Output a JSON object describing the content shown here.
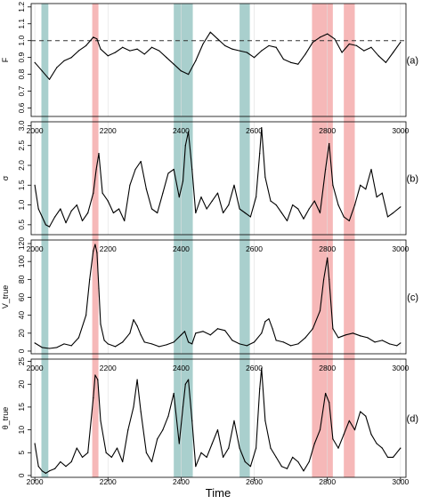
{
  "figure": {
    "xlabel": "Time",
    "x_range": [
      1990,
      3015
    ],
    "x_ticks": [
      2000,
      2200,
      2400,
      2600,
      2800,
      3000
    ],
    "shade_colors": {
      "teal": "#a9cfcd",
      "pink": "#f6b8b8"
    },
    "shaded_periods": [
      {
        "color": "teal",
        "start": 2018,
        "end": 2037
      },
      {
        "color": "pink",
        "start": 2157,
        "end": 2174
      },
      {
        "color": "teal",
        "start": 2380,
        "end": 2432
      },
      {
        "color": "teal",
        "start": 2560,
        "end": 2588
      },
      {
        "color": "pink",
        "start": 2758,
        "end": 2815
      },
      {
        "color": "pink",
        "start": 2845,
        "end": 2875
      }
    ]
  },
  "chart_data": [
    {
      "type": "line",
      "panel_label": "(a)",
      "ylabel": "F",
      "ylim": [
        0.55,
        1.22
      ],
      "y_ticks": [
        "0.6",
        "0.7",
        "0.8",
        "0.9",
        "1.0",
        "1.1",
        "1.2"
      ],
      "reference_line": 1.0,
      "x": [
        2000,
        2020,
        2040,
        2060,
        2080,
        2100,
        2120,
        2140,
        2160,
        2170,
        2180,
        2200,
        2220,
        2240,
        2260,
        2280,
        2300,
        2320,
        2340,
        2360,
        2380,
        2400,
        2420,
        2440,
        2460,
        2480,
        2500,
        2520,
        2540,
        2560,
        2580,
        2600,
        2620,
        2640,
        2660,
        2680,
        2700,
        2720,
        2740,
        2760,
        2780,
        2800,
        2820,
        2840,
        2860,
        2880,
        2900,
        2920,
        2940,
        2960,
        2980,
        3000
      ],
      "y": [
        0.87,
        0.82,
        0.77,
        0.84,
        0.88,
        0.9,
        0.94,
        0.97,
        1.02,
        1.01,
        0.95,
        0.91,
        0.93,
        0.96,
        0.94,
        0.95,
        0.92,
        0.96,
        0.94,
        0.9,
        0.86,
        0.82,
        0.8,
        0.88,
        0.98,
        1.05,
        1.01,
        0.97,
        0.95,
        0.94,
        0.93,
        0.9,
        0.94,
        0.97,
        0.96,
        0.89,
        0.87,
        0.86,
        0.92,
        0.99,
        1.02,
        1.04,
        1.01,
        0.93,
        0.98,
        0.97,
        0.94,
        0.96,
        0.91,
        0.87,
        0.93,
        0.99
      ]
    },
    {
      "type": "line",
      "panel_label": "(b)",
      "ylabel": "σ",
      "ylim": [
        0.25,
        3.1
      ],
      "y_ticks": [
        "0.5",
        "1.0",
        "1.5",
        "2.0",
        "2.5",
        "3.0"
      ],
      "x": [
        2000,
        2010,
        2020,
        2030,
        2040,
        2055,
        2070,
        2085,
        2100,
        2115,
        2130,
        2145,
        2160,
        2168,
        2175,
        2185,
        2200,
        2215,
        2230,
        2245,
        2260,
        2275,
        2290,
        2305,
        2320,
        2335,
        2350,
        2365,
        2380,
        2395,
        2405,
        2412,
        2420,
        2430,
        2440,
        2455,
        2470,
        2485,
        2500,
        2515,
        2530,
        2545,
        2560,
        2575,
        2590,
        2605,
        2615,
        2620,
        2630,
        2645,
        2660,
        2675,
        2690,
        2705,
        2720,
        2735,
        2750,
        2765,
        2780,
        2795,
        2805,
        2815,
        2830,
        2845,
        2860,
        2875,
        2890,
        2905,
        2920,
        2935,
        2950,
        2965,
        2980,
        3000
      ],
      "y": [
        1.5,
        0.9,
        0.7,
        0.5,
        0.45,
        0.7,
        0.9,
        0.55,
        0.85,
        1.0,
        0.6,
        0.8,
        1.3,
        1.9,
        2.3,
        1.3,
        1.1,
        0.8,
        0.9,
        0.6,
        1.5,
        1.9,
        2.1,
        1.4,
        0.9,
        0.8,
        1.3,
        1.8,
        1.9,
        1.2,
        1.6,
        2.5,
        2.85,
        1.9,
        0.8,
        1.2,
        0.9,
        1.1,
        1.3,
        0.8,
        1.0,
        1.5,
        0.9,
        0.8,
        0.7,
        1.2,
        2.3,
        2.95,
        1.7,
        1.1,
        1.0,
        0.8,
        0.6,
        1.0,
        0.9,
        0.65,
        0.9,
        1.1,
        0.8,
        1.9,
        2.55,
        1.5,
        1.0,
        0.7,
        0.6,
        1.0,
        1.5,
        1.4,
        1.9,
        1.2,
        1.3,
        0.7,
        0.8,
        0.95
      ]
    },
    {
      "type": "line",
      "panel_label": "(c)",
      "ylabel": "V_true",
      "ylim": [
        -3,
        124
      ],
      "y_ticks": [
        "0",
        "20",
        "40",
        "60",
        "80",
        "100",
        "120"
      ],
      "x": [
        2000,
        2020,
        2040,
        2060,
        2080,
        2100,
        2120,
        2140,
        2150,
        2160,
        2165,
        2170,
        2175,
        2180,
        2190,
        2200,
        2220,
        2240,
        2260,
        2270,
        2280,
        2290,
        2300,
        2320,
        2340,
        2360,
        2380,
        2400,
        2410,
        2420,
        2430,
        2440,
        2460,
        2480,
        2500,
        2520,
        2540,
        2560,
        2580,
        2600,
        2620,
        2630,
        2640,
        2650,
        2660,
        2680,
        2700,
        2720,
        2740,
        2760,
        2780,
        2790,
        2800,
        2805,
        2815,
        2830,
        2850,
        2870,
        2890,
        2910,
        2930,
        2950,
        2970,
        2990,
        3000
      ],
      "y": [
        9,
        4,
        3,
        4,
        8,
        6,
        15,
        40,
        80,
        112,
        119,
        110,
        70,
        30,
        12,
        8,
        5,
        10,
        20,
        35,
        28,
        18,
        10,
        8,
        5,
        7,
        10,
        18,
        22,
        10,
        8,
        20,
        22,
        18,
        25,
        23,
        12,
        8,
        6,
        10,
        20,
        33,
        36,
        25,
        12,
        10,
        6,
        8,
        15,
        25,
        45,
        80,
        104,
        80,
        25,
        15,
        18,
        20,
        17,
        15,
        10,
        12,
        8,
        6,
        9
      ]
    },
    {
      "type": "line",
      "panel_label": "(d)",
      "ylabel": "θ_true",
      "ylim": [
        -0.4,
        25.5
      ],
      "y_ticks": [
        "0",
        "5",
        "10",
        "15",
        "20",
        "25"
      ],
      "x": [
        2000,
        2010,
        2020,
        2030,
        2040,
        2055,
        2070,
        2085,
        2100,
        2115,
        2130,
        2145,
        2160,
        2165,
        2172,
        2180,
        2195,
        2210,
        2225,
        2240,
        2255,
        2270,
        2280,
        2290,
        2305,
        2320,
        2335,
        2350,
        2365,
        2380,
        2395,
        2405,
        2412,
        2420,
        2430,
        2440,
        2455,
        2470,
        2485,
        2500,
        2515,
        2530,
        2545,
        2560,
        2575,
        2590,
        2605,
        2615,
        2620,
        2630,
        2645,
        2660,
        2675,
        2690,
        2705,
        2720,
        2735,
        2750,
        2765,
        2780,
        2795,
        2805,
        2815,
        2830,
        2845,
        2860,
        2875,
        2890,
        2905,
        2920,
        2935,
        2950,
        2965,
        2980,
        3000
      ],
      "y": [
        7,
        2,
        1,
        0.5,
        1,
        1.5,
        3,
        2,
        3,
        6,
        4,
        5,
        17,
        22,
        21,
        12,
        5,
        4,
        6,
        3,
        10,
        15,
        21,
        14,
        5,
        3,
        8,
        10,
        13,
        18,
        7,
        15,
        20,
        21,
        12,
        2,
        5,
        4,
        7,
        10,
        4,
        6,
        12,
        6,
        3,
        2,
        6,
        19,
        23.5,
        12,
        6,
        4,
        2,
        1.5,
        4,
        3,
        1,
        3,
        7,
        10,
        18,
        16,
        8,
        6,
        9,
        12,
        10,
        14,
        13,
        9,
        7,
        6,
        4,
        4,
        6
      ]
    }
  ]
}
